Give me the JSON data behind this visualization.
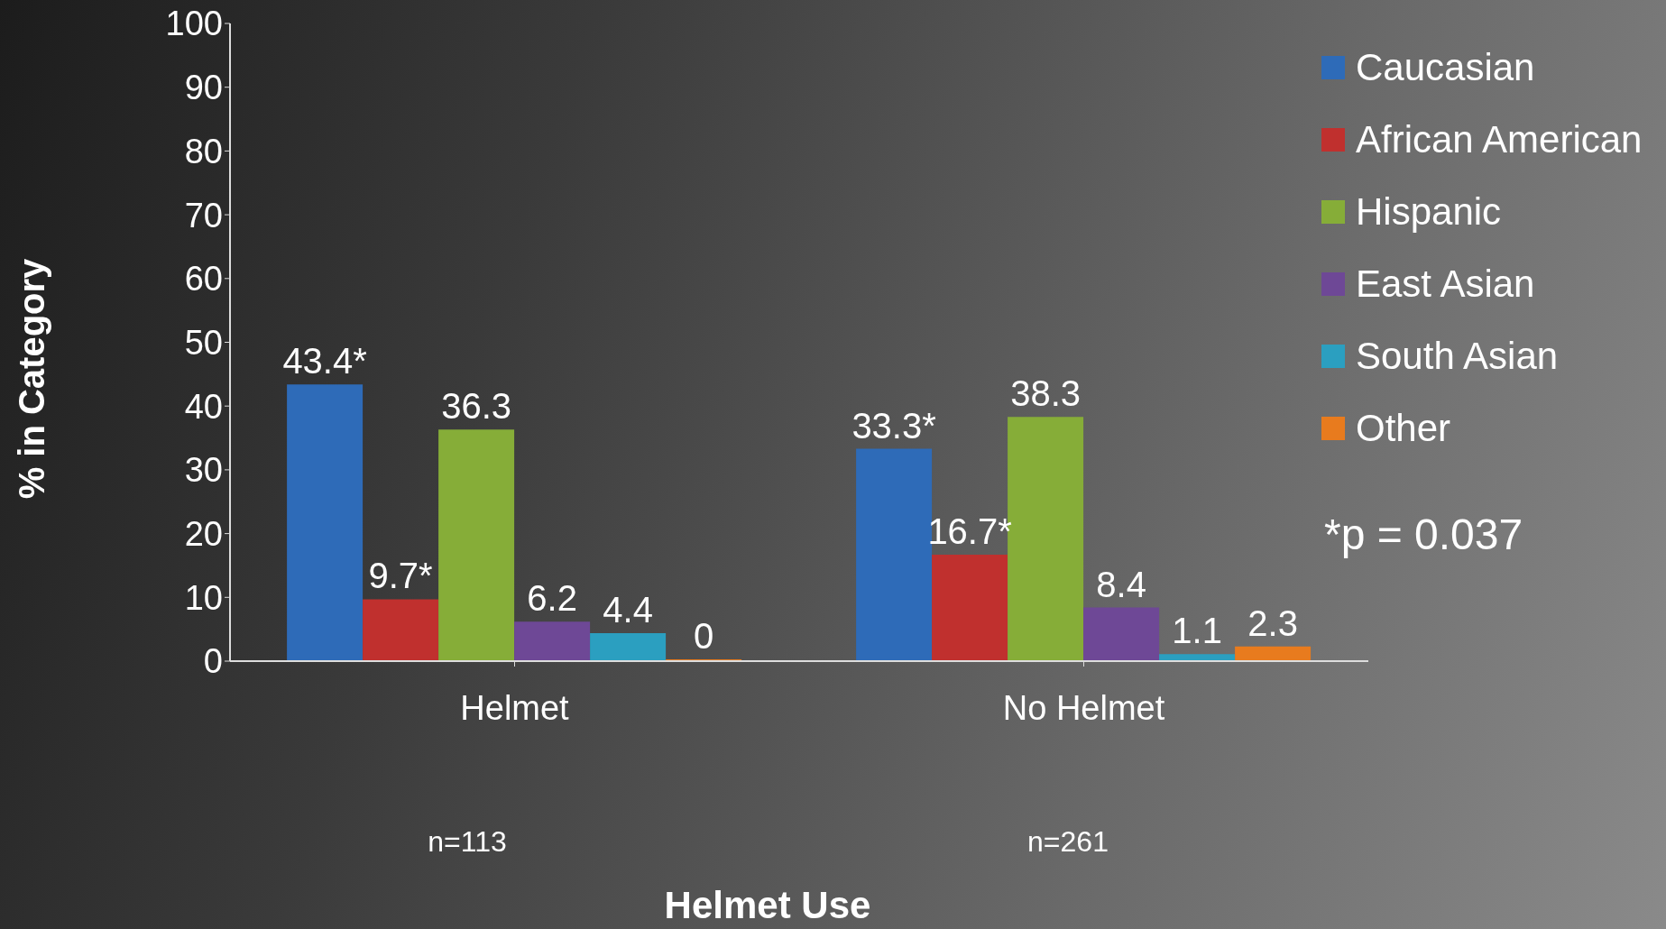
{
  "chart_data": {
    "type": "bar",
    "xlabel": "Helmet Use",
    "ylabel": "% in Category",
    "categories": [
      "Helmet",
      "No Helmet"
    ],
    "series": [
      {
        "name": "Caucasian",
        "color": "#2e6bb8",
        "values": [
          43.4,
          33.3
        ],
        "value_labels": [
          "43.4*",
          "33.3*"
        ]
      },
      {
        "name": "African American",
        "color": "#c0302e",
        "values": [
          9.7,
          16.7
        ],
        "value_labels": [
          "9.7*",
          "16.7*"
        ]
      },
      {
        "name": "Hispanic",
        "color": "#86ad38",
        "values": [
          36.3,
          38.3
        ],
        "value_labels": [
          "36.3",
          "38.3"
        ]
      },
      {
        "name": "East Asian",
        "color": "#6e4896",
        "values": [
          6.2,
          8.4
        ],
        "value_labels": [
          "6.2",
          "8.4"
        ]
      },
      {
        "name": "South Asian",
        "color": "#2b9fc0",
        "values": [
          4.4,
          1.1
        ],
        "value_labels": [
          "4.4",
          "1.1"
        ]
      },
      {
        "name": "Other",
        "color": "#e87b1e",
        "values": [
          0,
          2.3
        ],
        "value_labels": [
          "0",
          "2.3"
        ]
      }
    ],
    "ylim": [
      0,
      100
    ],
    "yticks": [
      0,
      10,
      20,
      30,
      40,
      50,
      60,
      70,
      80,
      90,
      100
    ],
    "grid": false,
    "legend": "top right",
    "annotations": [
      "n=113",
      "n=261",
      "*p = 0.037"
    ]
  }
}
